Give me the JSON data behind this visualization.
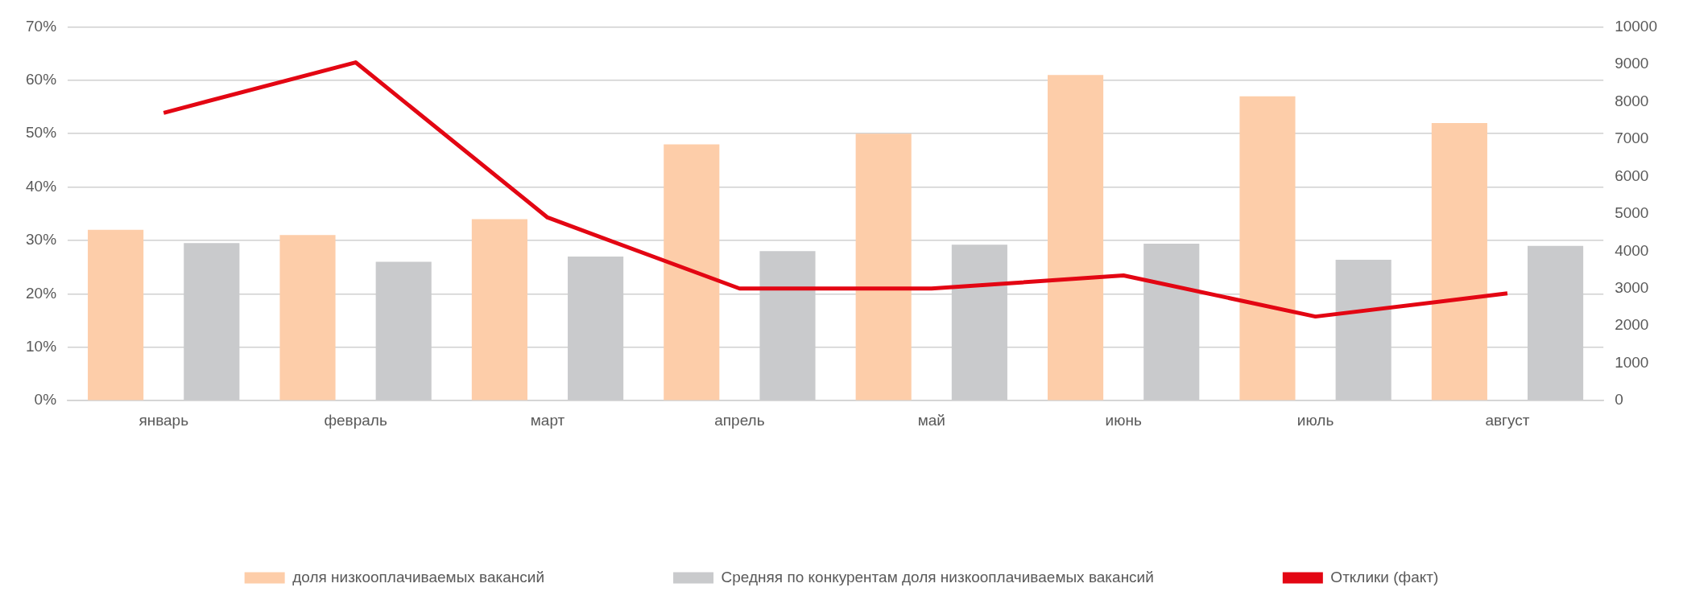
{
  "chart_data": {
    "type": "bar",
    "categories": [
      "январь",
      "февраль",
      "март",
      "апрель",
      "май",
      "июнь",
      "июль",
      "август"
    ],
    "series": [
      {
        "name": "доля низкооплачиваемых вакансий",
        "color": "#fdcda9",
        "values": [
          32,
          31,
          34,
          48,
          50,
          61,
          57,
          52
        ]
      },
      {
        "name": "Средняя по конкурентам доля низкооплачиваемых вакансий",
        "color": "#c9cacc",
        "values": [
          29.5,
          26,
          27,
          28,
          29.2,
          29.4,
          26.4,
          29
        ]
      },
      {
        "name": "Отклики (факт)",
        "type": "line",
        "axis": "y2",
        "color": "#e30613",
        "values": [
          7700,
          9050,
          4900,
          3000,
          3000,
          3350,
          2250,
          2870
        ]
      }
    ],
    "ylim": [
      0,
      70
    ],
    "yticks": [
      {
        "value": 0,
        "label": "0%"
      },
      {
        "value": 10,
        "label": "10%"
      },
      {
        "value": 20,
        "label": "20%"
      },
      {
        "value": 30,
        "label": "30%"
      },
      {
        "value": 40,
        "label": "40%"
      },
      {
        "value": 50,
        "label": "50%"
      },
      {
        "value": 60,
        "label": "60%"
      },
      {
        "value": 70,
        "label": "70%"
      }
    ],
    "y2lim": [
      0,
      10000
    ],
    "y2ticks": [
      0,
      1000,
      2000,
      3000,
      4000,
      5000,
      6000,
      7000,
      8000,
      9000,
      10000
    ],
    "grid": "y",
    "legend": "bottom",
    "marker": "none"
  }
}
